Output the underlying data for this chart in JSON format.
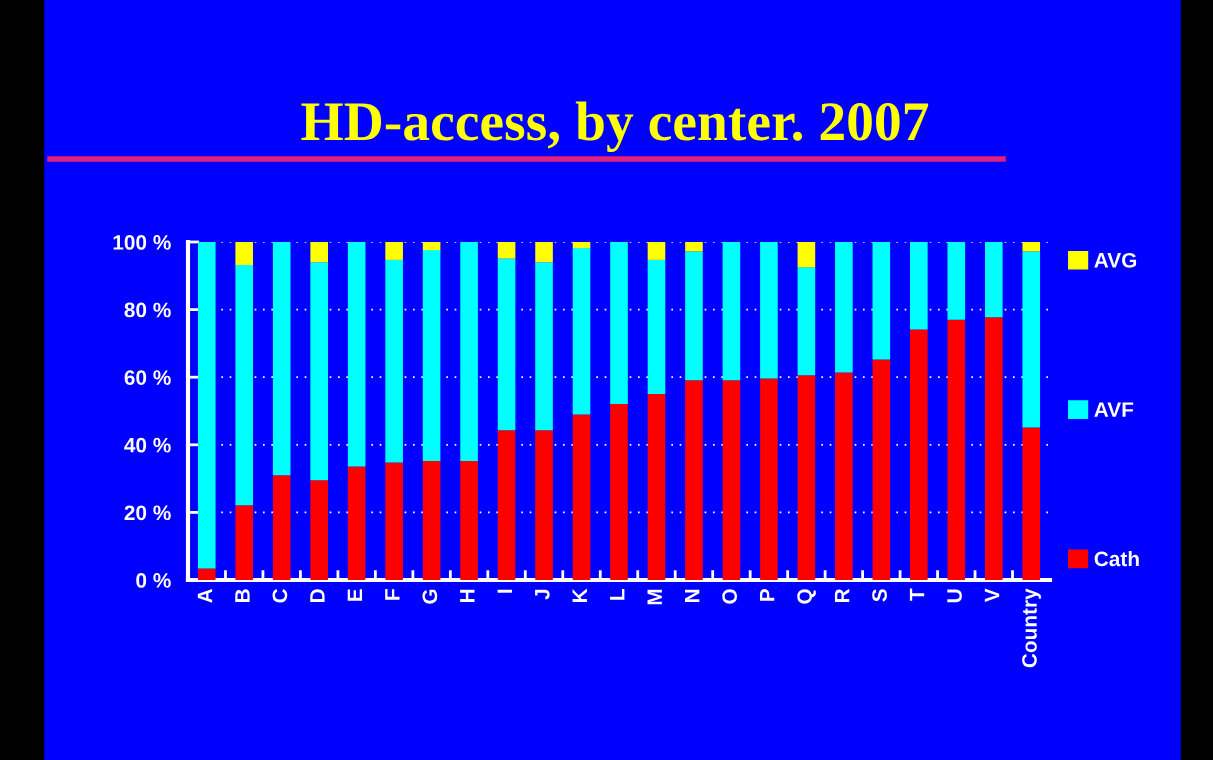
{
  "chart_data": {
    "type": "bar",
    "title": "HD-access, by center. 2007",
    "stacked": true,
    "categories": [
      "A",
      "B",
      "C",
      "D",
      "E",
      "F",
      "G",
      "H",
      "I",
      "J",
      "K",
      "L",
      "M",
      "N",
      "O",
      "P",
      "Q",
      "R",
      "S",
      "T",
      "U",
      "V",
      "Country"
    ],
    "series": [
      {
        "name": "Cath",
        "color": "#ff0000",
        "values": [
          3.4,
          22.1,
          31.0,
          29.5,
          33.6,
          34.8,
          35.2,
          35.2,
          44.3,
          44.3,
          49.0,
          52.1,
          55.0,
          59.1,
          59.1,
          59.6,
          60.6,
          61.4,
          65.2,
          74.1,
          77.0,
          77.7,
          45.1
        ]
      },
      {
        "name": "AVF",
        "color": "#00ffff",
        "values": [
          96.6,
          71.1,
          69.0,
          64.5,
          66.4,
          59.9,
          62.4,
          64.8,
          50.8,
          49.7,
          49.2,
          47.9,
          39.7,
          38.1,
          40.9,
          40.4,
          31.9,
          38.6,
          34.8,
          25.9,
          23.0,
          22.3,
          52.1
        ]
      },
      {
        "name": "AVG",
        "color": "#ffff00",
        "values": [
          0,
          6.8,
          0,
          6.0,
          0,
          5.3,
          2.4,
          0,
          4.9,
          6.0,
          1.8,
          0,
          5.3,
          2.8,
          0,
          0,
          7.5,
          0,
          0,
          0,
          0,
          0,
          2.8
        ]
      }
    ],
    "ylim": [
      0,
      100
    ],
    "yticks": [
      {
        "value": 0,
        "label": "0 %"
      },
      {
        "value": 20,
        "label": "20 %"
      },
      {
        "value": 40,
        "label": "40 %"
      },
      {
        "value": 60,
        "label": "60 %"
      },
      {
        "value": 80,
        "label": "80 %"
      },
      {
        "value": 100,
        "label": "100 %"
      }
    ],
    "grid": "y",
    "legend": "right"
  }
}
